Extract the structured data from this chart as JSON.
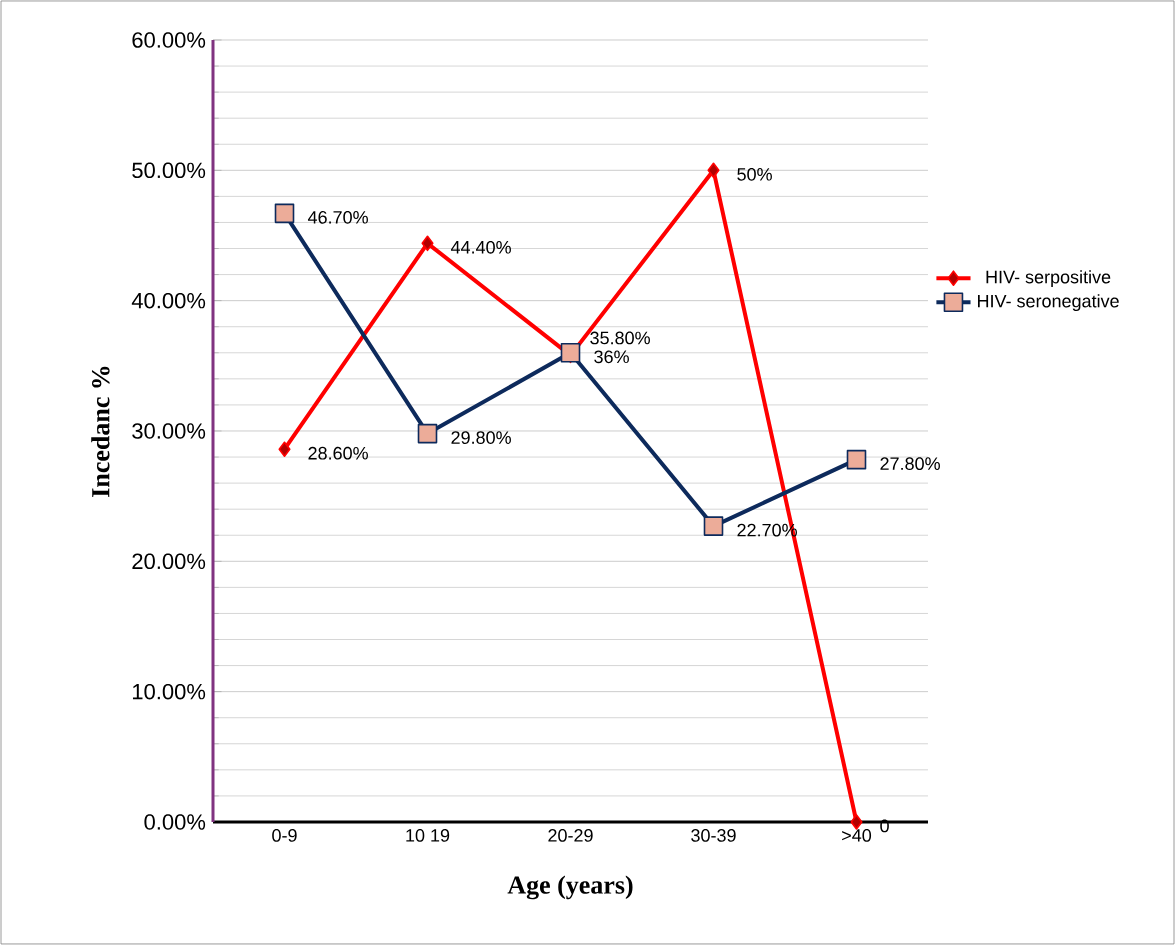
{
  "chart_data": {
    "type": "line",
    "xlabel": "Age  (years)",
    "ylabel": "Incedanc %",
    "categories": [
      "0-9",
      "10 19",
      "20-29",
      "30-39",
      ">40"
    ],
    "series": [
      {
        "name": "HIV- serpositive",
        "color": "#ff0000",
        "marker": "diamond",
        "values": [
          28.6,
          44.4,
          35.8,
          50,
          0
        ],
        "value_labels": [
          "28.60%",
          "44.40%",
          "35.80%",
          "50%",
          "0"
        ]
      },
      {
        "name": "HIV- seronegative",
        "color": "#0d2a5c",
        "marker": "square",
        "values": [
          46.7,
          29.8,
          36,
          22.7,
          27.8
        ],
        "value_labels": [
          "46.70%",
          "29.80%",
          "36%",
          "22.70%",
          "27.80%"
        ]
      }
    ],
    "ylim": [
      0,
      60
    ],
    "yticks": [
      {
        "value": 0,
        "label": "0.00%"
      },
      {
        "value": 10,
        "label": "10.00%"
      },
      {
        "value": 20,
        "label": "20.00%"
      },
      {
        "value": 30,
        "label": "30.00%"
      },
      {
        "value": 40,
        "label": "40.00%"
      },
      {
        "value": 50,
        "label": "50.00%"
      },
      {
        "value": 60,
        "label": "60.00%"
      }
    ],
    "grid": "y",
    "legend": "right",
    "line_style": "solid"
  }
}
